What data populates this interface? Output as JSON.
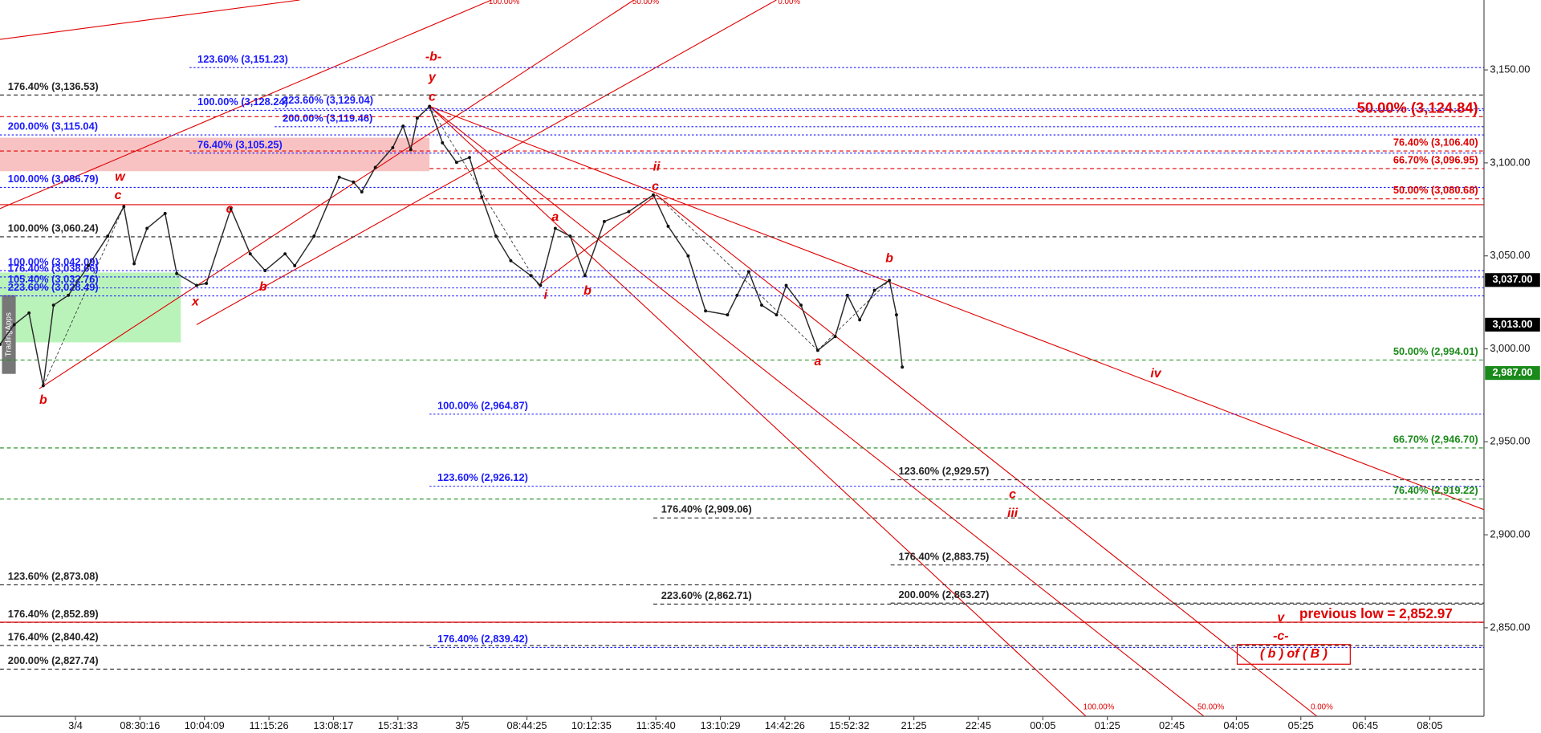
{
  "chart_data": {
    "type": "line",
    "watermark": "TradingApps",
    "categories": [
      "3/4",
      "08:30:16",
      "10:04:09",
      "11:15:26",
      "13:08:17",
      "15:31:33",
      "3/5",
      "08:44:25",
      "10:12:35",
      "11:35:40",
      "13:10:29",
      "14:42:26",
      "15:52:32",
      "21:25",
      "22:45",
      "00:05",
      "01:25",
      "02:45",
      "04:05",
      "05:25",
      "06:45",
      "08:05"
    ],
    "xlim": [
      -1.17,
      21.84
    ],
    "ylim": [
      2802.4,
      3187.6
    ],
    "yticks": [
      {
        "value": 3150,
        "label": "3,150.00"
      },
      {
        "value": 3100,
        "label": "3,100.00"
      },
      {
        "value": 3050,
        "label": "3,050.00"
      },
      {
        "value": 3000,
        "label": "3,000.00"
      },
      {
        "value": 2950,
        "label": "2,950.00"
      },
      {
        "value": 2900,
        "label": "2,900.00"
      },
      {
        "value": 2850,
        "label": "2,850.00"
      }
    ],
    "series": [
      {
        "color": "#2b2b2b",
        "x": [
          -1.17,
          -0.95,
          -0.72,
          -0.5,
          -0.34,
          -0.11,
          0.2,
          0.5,
          0.75,
          0.91,
          1.11,
          1.39,
          1.57,
          1.88,
          2.03,
          2.41,
          2.71,
          2.94,
          3.25,
          3.4,
          3.7,
          4.09,
          4.31,
          4.44,
          4.65,
          4.92,
          5.08,
          5.2,
          5.3,
          5.49,
          5.69,
          5.91,
          6.11,
          6.3,
          6.52,
          6.75,
          7.06,
          7.21,
          7.44,
          7.67,
          7.9,
          8.2,
          8.58,
          8.96,
          9.19,
          9.5,
          9.77,
          10.11,
          10.26,
          10.44,
          10.64,
          10.87,
          11.02,
          11.25,
          11.51,
          11.78,
          11.97,
          12.16,
          12.39,
          12.62,
          12.73,
          12.82
        ],
        "values": [
          3002.4,
          3013,
          3019.3,
          2980.2,
          3023.5,
          3028.8,
          3044.7,
          3060.6,
          3076.5,
          3045.8,
          3064.8,
          3072.8,
          3040.5,
          3034.1,
          3035.2,
          3075.4,
          3051.1,
          3042.1,
          3051.1,
          3044.7,
          3060.6,
          3092.3,
          3089.7,
          3084.4,
          3097.6,
          3108.2,
          3119.8,
          3107.1,
          3124.1,
          3130.4,
          3110.8,
          3100.3,
          3102.9,
          3081.7,
          3060.6,
          3047.4,
          3039.4,
          3034.1,
          3064.8,
          3060.6,
          3039.4,
          3068.5,
          3073.8,
          3082.8,
          3065.9,
          3050,
          3020.4,
          3018.3,
          3028.8,
          3041.5,
          3023.5,
          3018.3,
          3034.1,
          3023.5,
          2999.2,
          3006.6,
          3028.8,
          3015.6,
          3031.5,
          3036.8,
          3018.3,
          2990.2
        ]
      }
    ],
    "levels": [
      {
        "label": "176.40% (3,136.53)",
        "value": 3136.53,
        "from": -1.17,
        "color": "#222222",
        "dash": "dashed"
      },
      {
        "label": "100.00% (3,060.24)",
        "value": 3060.24,
        "from": -1.17,
        "color": "#222222",
        "dash": "dashed"
      },
      {
        "label": "123.60% (2,873.08)",
        "value": 2873.08,
        "from": -1.17,
        "color": "#222222",
        "dash": "dashed"
      },
      {
        "label": "176.40% (2,852.89)",
        "value": 2852.89,
        "from": -1.17,
        "color": "#222222",
        "dash": "dashed"
      },
      {
        "label": "176.40% (2,840.42)",
        "value": 2840.42,
        "from": -1.17,
        "color": "#222222",
        "dash": "dashed"
      },
      {
        "label": "200.00% (2,827.74)",
        "value": 2827.74,
        "from": -1.17,
        "color": "#222222",
        "dash": "dashed"
      },
      {
        "label": "176.40% (2,909.06)",
        "value": 2909.06,
        "from": 8.96,
        "color": "#222222",
        "dash": "dashed"
      },
      {
        "label": "223.60% (2,862.71)",
        "value": 2862.71,
        "from": 8.96,
        "color": "#222222",
        "dash": "dashed"
      },
      {
        "label": "123.60% (2,929.57)",
        "value": 2929.57,
        "from": 12.64,
        "color": "#222222",
        "dash": "dashed"
      },
      {
        "label": "176.40% (2,883.75)",
        "value": 2883.75,
        "from": 12.64,
        "color": "#222222",
        "dash": "dashed"
      },
      {
        "label": "200.00% (2,863.27)",
        "value": 2863.27,
        "from": 12.64,
        "color": "#222222",
        "dash": "dashed"
      },
      {
        "label": "123.60% (3,151.23)",
        "value": 3151.23,
        "from": 1.77,
        "color": "#1a1aff",
        "dash": "dotted"
      },
      {
        "label": "100.00% (3,128.24)",
        "value": 3128.24,
        "from": 1.77,
        "color": "#1a1aff",
        "dash": "dotted"
      },
      {
        "label": "223.60% (3,129.04)",
        "value": 3129.04,
        "from": 3.09,
        "color": "#1a1aff",
        "dash": "dotted"
      },
      {
        "label": "200.00% (3,119.46)",
        "value": 3119.46,
        "from": 3.09,
        "color": "#1a1aff",
        "dash": "dotted"
      },
      {
        "label": "200.00% (3,115.04)",
        "value": 3115.04,
        "from": -1.17,
        "color": "#1a1aff",
        "dash": "dotted"
      },
      {
        "label": "76.40% (3,105.25)",
        "value": 3105.25,
        "from": 1.77,
        "color": "#1a1aff",
        "dash": "dotted"
      },
      {
        "label": "100.00% (3,086.79)",
        "value": 3086.79,
        "from": -1.17,
        "color": "#1a1aff",
        "dash": "dotted"
      },
      {
        "label": "100.00% (3,042.09)",
        "value": 3042.09,
        "from": -1.17,
        "color": "#1a1aff",
        "dash": "dotted"
      },
      {
        "label": "176.40% (3,038.66)",
        "value": 3038.66,
        "from": -1.17,
        "color": "#1a1aff",
        "dash": "dotted"
      },
      {
        "label": "105.40% (3,032.76)",
        "value": 3032.76,
        "from": -1.17,
        "color": "#1a1aff",
        "dash": "dotted"
      },
      {
        "label": "223.60% (3,028.49)",
        "value": 3028.49,
        "from": -1.17,
        "color": "#1a1aff",
        "dash": "dotted"
      },
      {
        "label": "100.00% (2,964.87)",
        "value": 2964.87,
        "from": 5.49,
        "color": "#1a1aff",
        "dash": "dotted"
      },
      {
        "label": "123.60% (2,926.12)",
        "value": 2926.12,
        "from": 5.49,
        "color": "#1a1aff",
        "dash": "dotted"
      },
      {
        "label": "176.40% (2,839.42)",
        "value": 2839.42,
        "from": 5.49,
        "color": "#1a1aff",
        "dash": "dotted"
      },
      {
        "label": "50.00% (3,124.84)",
        "value": 3124.84,
        "from": -1.17,
        "color": "#e00000",
        "dash": "dashed",
        "align": "right",
        "emphasis": true
      },
      {
        "label": "76.40% (3,106.40)",
        "value": 3106.4,
        "from": -1.17,
        "color": "#e00000",
        "dash": "dashed",
        "align": "right"
      },
      {
        "label": "66.70% (3,096.95)",
        "value": 3096.95,
        "from": 5.49,
        "color": "#e00000",
        "dash": "dashed",
        "align": "right"
      },
      {
        "label": "50.00% (3,080.68)",
        "value": 3080.68,
        "from": 5.49,
        "color": "#e00000",
        "dash": "dashed",
        "align": "right"
      },
      {
        "label": "50.00% (2,994.01)",
        "value": 2994.01,
        "from": -1.17,
        "color": "#1a8a1a",
        "dash": "dashed",
        "align": "right"
      },
      {
        "label": "66.70% (2,946.70)",
        "value": 2946.7,
        "from": -1.17,
        "color": "#1a8a1a",
        "dash": "dashed",
        "align": "right"
      },
      {
        "label": "76.40% (2,919.22)",
        "value": 2919.22,
        "from": -1.17,
        "color": "#1a8a1a",
        "dash": "dashed",
        "align": "right"
      }
    ],
    "annotations": [
      {
        "text": "-b-",
        "x": 5.55,
        "y": 3156.9
      },
      {
        "text": "y",
        "x": 5.53,
        "y": 3145.8
      },
      {
        "text": "c",
        "x": 5.53,
        "y": 3135.2
      },
      {
        "text": "w",
        "x": 0.69,
        "y": 3092.3
      },
      {
        "text": "c",
        "x": 0.66,
        "y": 3082.3
      },
      {
        "text": "b",
        "x": -0.5,
        "y": 2972.2
      },
      {
        "text": "x",
        "x": 1.86,
        "y": 3025.1
      },
      {
        "text": "b",
        "x": 2.91,
        "y": 3033.1
      },
      {
        "text": "c",
        "x": 2.39,
        "y": 3074.9
      },
      {
        "text": "a",
        "x": 7.44,
        "y": 3070.6
      },
      {
        "text": "i",
        "x": 7.29,
        "y": 3028.8
      },
      {
        "text": "b",
        "x": 7.94,
        "y": 3031
      },
      {
        "text": "ii",
        "x": 9.01,
        "y": 3097.6
      },
      {
        "text": "c",
        "x": 8.99,
        "y": 3087
      },
      {
        "text": "b",
        "x": 12.62,
        "y": 3048.4
      },
      {
        "text": "a",
        "x": 11.51,
        "y": 2992.9
      },
      {
        "text": "iv",
        "x": 16.75,
        "y": 2986.5
      },
      {
        "text": "c",
        "x": 14.53,
        "y": 2921.4
      },
      {
        "text": "iii",
        "x": 14.53,
        "y": 2911.4
      },
      {
        "text": "v",
        "x": 18.69,
        "y": 2855.3
      },
      {
        "text": "-c-",
        "x": 18.69,
        "y": 2845.2
      },
      {
        "text": "( b ) of ( B )",
        "x": 18.89,
        "y": 2835.7,
        "boxed": true
      }
    ],
    "previous_low": {
      "label": "previous low = 2,852.97",
      "value": 2852.97
    },
    "price_tags": [
      {
        "value": 3037,
        "label": "3,037.00",
        "color": "#000000"
      },
      {
        "value": 3013,
        "label": "3,013.00",
        "color": "#000000"
      },
      {
        "value": 2987,
        "label": "2,987.00",
        "color": "#1a8a1a"
      }
    ],
    "channel_labels_top": [
      "100.00%",
      "50.00%",
      "0.00%"
    ],
    "channel_labels_bottom": [
      "100.00%",
      "50.00%",
      "0.00%"
    ]
  }
}
